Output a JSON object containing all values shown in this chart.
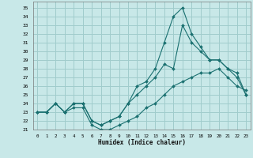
{
  "xlabel": "Humidex (Indice chaleur)",
  "bg_color": "#c8e8e8",
  "grid_color": "#a0cccc",
  "line_color": "#1a7070",
  "xlim": [
    -0.5,
    23.5
  ],
  "ylim": [
    21,
    35.7
  ],
  "yticks": [
    21,
    22,
    23,
    24,
    25,
    26,
    27,
    28,
    29,
    30,
    31,
    32,
    33,
    34,
    35
  ],
  "xticks": [
    0,
    1,
    2,
    3,
    4,
    5,
    6,
    7,
    8,
    9,
    10,
    11,
    12,
    13,
    14,
    15,
    16,
    17,
    18,
    19,
    20,
    21,
    22,
    23
  ],
  "line1_x": [
    0,
    1,
    2,
    3,
    4,
    5,
    6,
    7,
    8,
    9,
    10,
    11,
    12,
    13,
    14,
    15,
    16,
    17,
    18,
    19,
    20,
    21,
    22,
    23
  ],
  "line1_y": [
    23,
    23,
    24,
    23,
    24,
    24,
    22,
    21.5,
    22,
    22.5,
    24,
    26,
    26.5,
    28,
    31,
    34,
    35,
    32,
    30.5,
    29,
    29,
    28,
    27,
    25
  ],
  "line2_x": [
    0,
    1,
    2,
    3,
    4,
    5,
    6,
    7,
    8,
    9,
    10,
    11,
    12,
    13,
    14,
    15,
    16,
    17,
    18,
    19,
    20,
    21,
    22,
    23
  ],
  "line2_y": [
    23,
    23,
    24,
    23,
    23.5,
    23.5,
    21.5,
    21,
    21,
    21.5,
    22,
    22.5,
    23.5,
    24,
    25,
    26,
    26.5,
    27,
    27.5,
    27.5,
    28,
    27,
    26,
    25.5
  ],
  "line3_x": [
    0,
    1,
    2,
    3,
    4,
    5,
    6,
    7,
    8,
    9,
    10,
    11,
    12,
    13,
    14,
    15,
    16,
    17,
    18,
    19,
    20,
    21,
    22,
    23
  ],
  "line3_y": [
    23,
    23,
    24,
    23,
    24,
    24,
    22,
    21.5,
    22,
    22.5,
    24,
    25,
    26,
    27,
    28.5,
    28,
    33,
    31,
    30,
    29,
    29,
    28,
    27.5,
    25
  ]
}
